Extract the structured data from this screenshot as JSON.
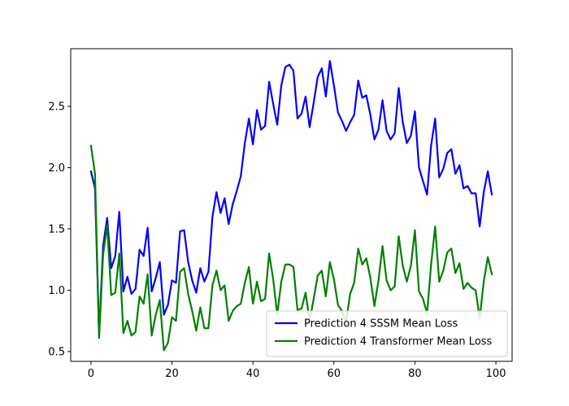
{
  "chart_data": {
    "type": "line",
    "title": "",
    "xlabel": "",
    "ylabel": "",
    "xlim": [
      -5,
      104
    ],
    "ylim": [
      0.42,
      2.97
    ],
    "xticks": [
      0,
      20,
      40,
      60,
      80,
      100
    ],
    "yticks": [
      0.5,
      1.0,
      1.5,
      2.0,
      2.5
    ],
    "xtick_labels": [
      "0",
      "20",
      "40",
      "60",
      "80",
      "100"
    ],
    "ytick_labels": [
      "0.5",
      "1.0",
      "1.5",
      "2.0",
      "2.5"
    ],
    "grid": false,
    "legend_position": "lower-right",
    "x": [
      0,
      1,
      2,
      3,
      4,
      5,
      6,
      7,
      8,
      9,
      10,
      11,
      12,
      13,
      14,
      15,
      16,
      17,
      18,
      19,
      20,
      21,
      22,
      23,
      24,
      25,
      26,
      27,
      28,
      29,
      30,
      31,
      32,
      33,
      34,
      35,
      36,
      37,
      38,
      39,
      40,
      41,
      42,
      43,
      44,
      45,
      46,
      47,
      48,
      49,
      50,
      51,
      52,
      53,
      54,
      55,
      56,
      57,
      58,
      59,
      60,
      61,
      62,
      63,
      64,
      65,
      66,
      67,
      68,
      69,
      70,
      71,
      72,
      73,
      74,
      75,
      76,
      77,
      78,
      79,
      80,
      81,
      82,
      83,
      84,
      85,
      86,
      87,
      88,
      89,
      90,
      91,
      92,
      93,
      94,
      95,
      96,
      97,
      98,
      99
    ],
    "series": [
      {
        "name": "Prediction 4 SSSM Mean Loss",
        "color": "#0000ff",
        "values": [
          1.97,
          1.83,
          0.64,
          1.36,
          1.59,
          1.18,
          1.28,
          1.64,
          0.99,
          1.11,
          0.97,
          1.01,
          1.33,
          1.28,
          1.51,
          0.99,
          1.1,
          1.23,
          0.8,
          0.88,
          1.08,
          1.06,
          1.48,
          1.49,
          1.23,
          1.08,
          0.98,
          1.18,
          1.07,
          1.15,
          1.6,
          1.8,
          1.63,
          1.75,
          1.54,
          1.7,
          1.81,
          1.93,
          2.2,
          2.4,
          2.19,
          2.47,
          2.31,
          2.34,
          2.7,
          2.52,
          2.35,
          2.67,
          2.82,
          2.84,
          2.79,
          2.4,
          2.44,
          2.58,
          2.33,
          2.53,
          2.74,
          2.81,
          2.58,
          2.87,
          2.67,
          2.45,
          2.38,
          2.3,
          2.37,
          2.43,
          2.71,
          2.57,
          2.59,
          2.43,
          2.23,
          2.31,
          2.55,
          2.3,
          2.23,
          2.28,
          2.65,
          2.37,
          2.2,
          2.26,
          2.46,
          2.0,
          1.89,
          1.78,
          2.18,
          2.4,
          1.92,
          1.99,
          2.12,
          2.15,
          1.95,
          2.02,
          1.83,
          1.85,
          1.79,
          1.79,
          1.52,
          1.8,
          1.97,
          1.78
        ]
      },
      {
        "name": "Prediction 4 Transformer Mean Loss",
        "color": "#008000",
        "values": [
          2.18,
          1.95,
          0.61,
          1.29,
          1.53,
          0.96,
          0.98,
          1.3,
          0.65,
          0.75,
          0.63,
          0.66,
          0.95,
          0.89,
          1.13,
          0.63,
          0.8,
          0.92,
          0.51,
          0.57,
          0.78,
          0.75,
          1.15,
          1.18,
          0.97,
          0.83,
          0.67,
          0.86,
          0.69,
          0.69,
          1.04,
          1.16,
          1.0,
          1.04,
          0.75,
          0.83,
          0.87,
          0.89,
          1.06,
          1.19,
          0.89,
          1.07,
          0.91,
          0.93,
          1.3,
          1.09,
          0.8,
          1.07,
          1.21,
          1.21,
          1.19,
          0.84,
          0.85,
          0.98,
          0.75,
          0.93,
          1.12,
          1.16,
          0.95,
          1.23,
          1.09,
          0.88,
          0.83,
          0.74,
          0.97,
          1.06,
          1.34,
          1.21,
          1.26,
          1.1,
          0.87,
          1.08,
          1.36,
          1.08,
          1.0,
          1.03,
          1.44,
          1.2,
          1.07,
          1.2,
          1.49,
          0.99,
          0.93,
          0.81,
          1.21,
          1.52,
          1.07,
          1.16,
          1.31,
          1.34,
          1.14,
          1.22,
          1.01,
          1.06,
          1.02,
          1.0,
          0.77,
          1.07,
          1.27,
          1.13
        ]
      }
    ]
  }
}
